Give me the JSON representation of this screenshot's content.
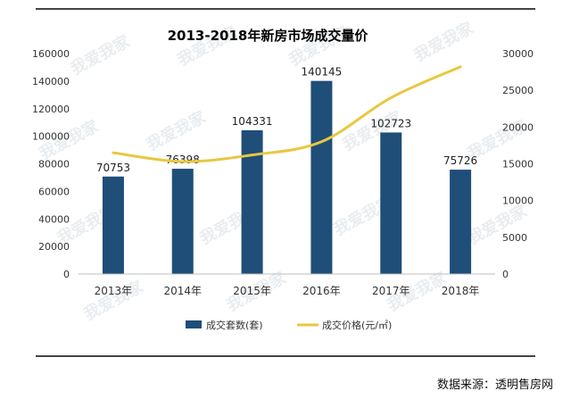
{
  "chart_data": {
    "type": "bar",
    "title": "2013-2018年新房市场成交量价",
    "categories": [
      "2013年",
      "2014年",
      "2015年",
      "2016年",
      "2017年",
      "2018年"
    ],
    "series": [
      {
        "name": "成交套数(套)",
        "kind": "bar",
        "axis": "left",
        "color": "#1f4e79",
        "values": [
          70753,
          76398,
          104331,
          140145,
          102723,
          75726
        ],
        "data_labels": [
          "70753",
          "76398",
          "104331",
          "140145",
          "102723",
          "75726"
        ]
      },
      {
        "name": "成交价格(元/㎡)",
        "kind": "line",
        "axis": "right",
        "color": "#e8c840",
        "values": [
          16500,
          15300,
          16200,
          18000,
          24000,
          28200
        ]
      }
    ],
    "yleft": {
      "min": 0,
      "max": 160000,
      "ticks": [
        "0",
        "20000",
        "40000",
        "60000",
        "80000",
        "100000",
        "120000",
        "140000",
        "160000"
      ]
    },
    "yright": {
      "min": 0,
      "max": 30000,
      "ticks": [
        "0",
        "5000",
        "10000",
        "15000",
        "20000",
        "25000",
        "30000"
      ]
    },
    "grid": false,
    "legend_position": "bottom"
  },
  "source_note": "数据来源：透明售房网",
  "watermark_text": "我爱我家"
}
